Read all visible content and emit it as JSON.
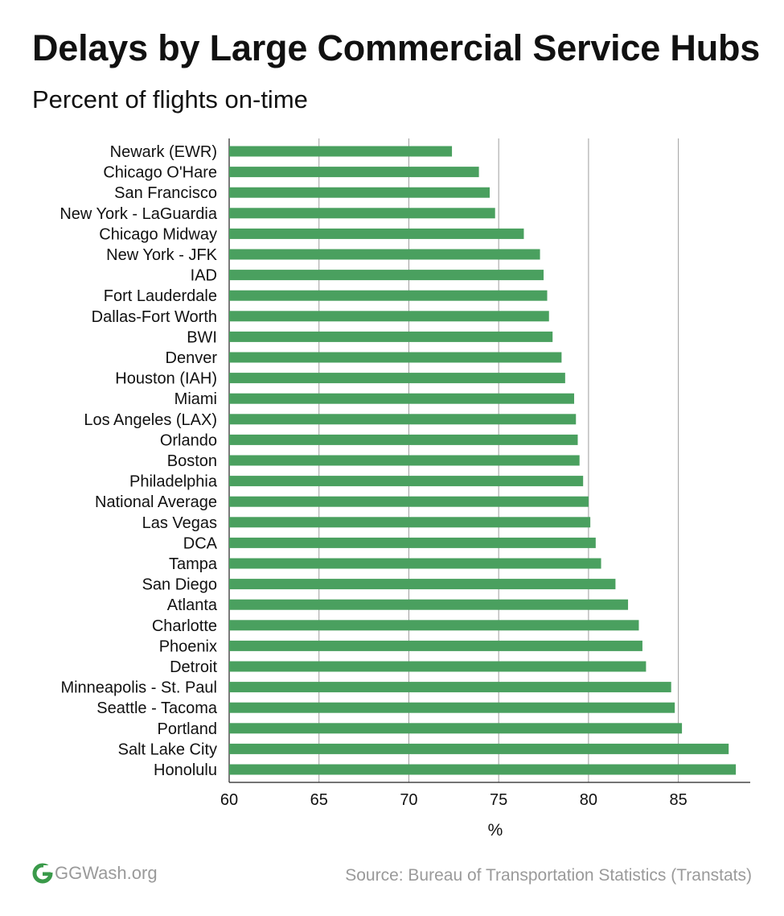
{
  "title": "Delays by Large Commercial Service Hubs",
  "subtitle": "Percent of flights on-time",
  "footer": {
    "logo_text": "GGWash.org",
    "source": "Source: Bureau of Transportation Statistics (Transtats)"
  },
  "colors": {
    "bar": "#4aa05f",
    "grid": "#9e9e9e",
    "logo": "#3a9a4a",
    "muted": "#9a9a9a"
  },
  "chart_data": {
    "type": "bar",
    "orientation": "horizontal",
    "title": "Delays by Large Commercial Service Hubs",
    "subtitle": "Percent of flights on-time",
    "xlabel": "%",
    "ylabel": "",
    "xlim": [
      60,
      89
    ],
    "xticks": [
      60,
      65,
      70,
      75,
      80,
      85
    ],
    "grid": true,
    "categories": [
      "Newark (EWR)",
      "Chicago O'Hare",
      "San Francisco",
      "New York - LaGuardia",
      "Chicago Midway",
      "New York - JFK",
      "IAD",
      "Fort Lauderdale",
      "Dallas-Fort Worth",
      "BWI",
      "Denver",
      "Houston (IAH)",
      "Miami",
      "Los Angeles (LAX)",
      "Orlando",
      "Boston",
      "Philadelphia",
      "National Average",
      "Las Vegas",
      "DCA",
      "Tampa",
      "San Diego",
      "Atlanta",
      "Charlotte",
      "Phoenix",
      "Detroit",
      "Minneapolis - St. Paul",
      "Seattle - Tacoma",
      "Portland",
      "Salt Lake City",
      "Honolulu"
    ],
    "values": [
      72.4,
      73.9,
      74.5,
      74.8,
      76.4,
      77.3,
      77.5,
      77.7,
      77.8,
      78.0,
      78.5,
      78.7,
      79.2,
      79.3,
      79.4,
      79.5,
      79.7,
      80.0,
      80.1,
      80.4,
      80.7,
      81.5,
      82.2,
      82.8,
      83.0,
      83.2,
      84.6,
      84.8,
      85.2,
      87.8,
      88.2
    ]
  }
}
